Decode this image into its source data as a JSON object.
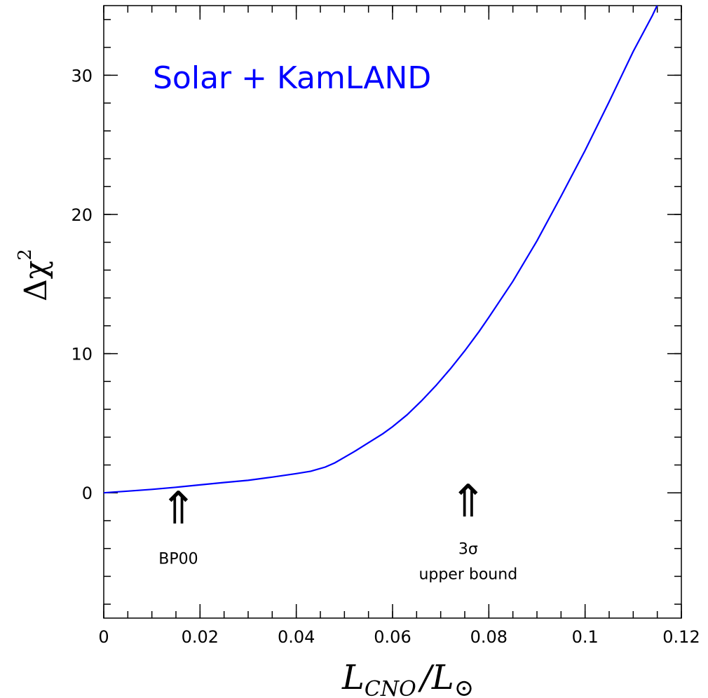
{
  "chart_data": {
    "type": "line",
    "title": "Solar + KamLAND",
    "title_color": "#0000ff",
    "line_color": "#0000ff",
    "axis_color": "#000000",
    "xlabel": {
      "main": "L",
      "sub1": "CNO",
      "slash": "/L",
      "sun": "⊙"
    },
    "ylabel": {
      "main": "Δχ",
      "sup": "2"
    },
    "xlim": [
      0,
      0.12
    ],
    "ylim": [
      -9,
      35
    ],
    "grid": false,
    "x_ticks": [
      0,
      0.02,
      0.04,
      0.06,
      0.08,
      0.1,
      0.12
    ],
    "x_tick_labels": [
      "0",
      "0.02",
      "0.04",
      "0.06",
      "0.08",
      "0.1",
      "0.12"
    ],
    "x_minor_step": 0.005,
    "y_ticks": [
      0,
      10,
      20,
      30
    ],
    "y_tick_labels": [
      "0",
      "10",
      "20",
      "30"
    ],
    "y_minor_step": 2,
    "series": [
      {
        "x": [
          0,
          0.002,
          0.005,
          0.01,
          0.015,
          0.02,
          0.025,
          0.03,
          0.035,
          0.04,
          0.043,
          0.046,
          0.048,
          0.05,
          0.052,
          0.055,
          0.058,
          0.06,
          0.063,
          0.066,
          0.069,
          0.072,
          0.075,
          0.078,
          0.08,
          0.085,
          0.09,
          0.095,
          0.1,
          0.105,
          0.11,
          0.114,
          0.117
        ],
        "y": [
          0,
          0.05,
          0.12,
          0.25,
          0.4,
          0.57,
          0.74,
          0.9,
          1.13,
          1.38,
          1.55,
          1.85,
          2.15,
          2.55,
          2.95,
          3.6,
          4.25,
          4.75,
          5.6,
          6.6,
          7.7,
          8.9,
          10.2,
          11.6,
          12.6,
          15.2,
          18.1,
          21.3,
          24.6,
          28.1,
          31.7,
          34.3,
          36.5
        ]
      }
    ],
    "annotations": [
      {
        "arrow": "⇑",
        "x": 0.0155,
        "y_arrow": -2.2,
        "label_lines": [
          "BP00"
        ],
        "y_label": -5.1
      },
      {
        "arrow": "⇑",
        "x": 0.0757,
        "y_arrow": -1.7,
        "label_lines": [
          "3σ",
          "upper bound"
        ],
        "y_label": -4.4
      }
    ]
  }
}
